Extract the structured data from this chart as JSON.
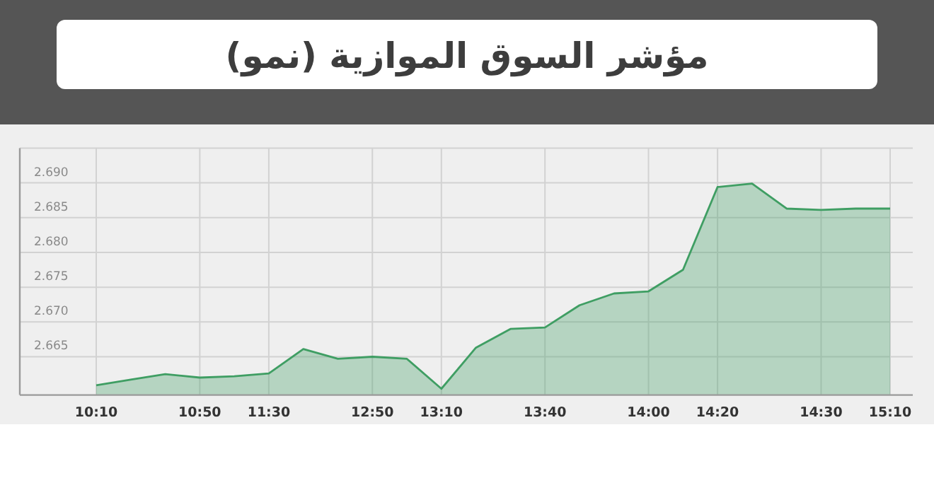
{
  "chart_data": {
    "type": "area",
    "title": "مؤشر السوق الموازية (نمو)",
    "categories": [
      "10:10",
      null,
      null,
      "10:50",
      null,
      "11:30",
      null,
      null,
      "12:50",
      null,
      "13:10",
      null,
      null,
      "13:40",
      null,
      null,
      "14:00",
      null,
      "14:20",
      null,
      null,
      "14:30",
      null,
      "15:10"
    ],
    "values": [
      2.6609,
      2.6617,
      2.6625,
      2.662,
      2.6622,
      2.6626,
      2.6661,
      2.6647,
      2.665,
      2.6647,
      2.6604,
      2.6663,
      2.669,
      2.6692,
      2.6724,
      2.6741,
      2.6744,
      2.6775,
      2.6894,
      2.6899,
      2.6863,
      2.6861,
      2.6863,
      2.6863
    ],
    "color": "#3f9e63",
    "ylim": [
      2.6595,
      2.695
    ],
    "yticks": [
      {
        "value": 2.665,
        "label": "2.665"
      },
      {
        "value": 2.67,
        "label": "2.670"
      },
      {
        "value": 2.675,
        "label": "2.675"
      },
      {
        "value": 2.68,
        "label": "2.680"
      },
      {
        "value": 2.685,
        "label": "2.685"
      },
      {
        "value": 2.69,
        "label": "2.690"
      },
      {
        "value": 2.695,
        "label": null
      }
    ],
    "grid": true
  }
}
